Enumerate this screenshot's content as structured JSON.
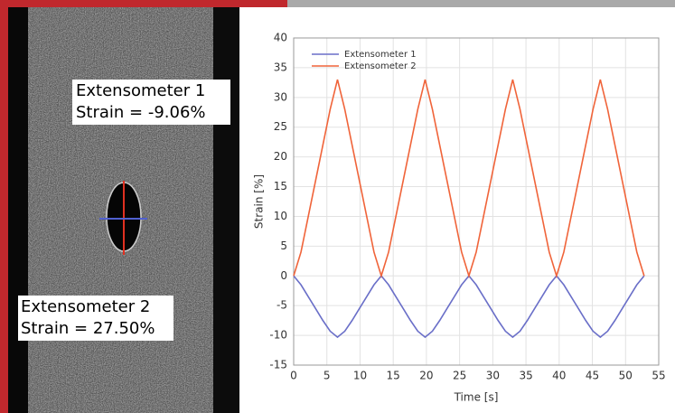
{
  "chart_data": {
    "type": "line",
    "x_label": "Time [s]",
    "y_label": "Strain [%]",
    "x": [
      0,
      1.1,
      2.2,
      3.3,
      4.4,
      5.5,
      6.6,
      7.7,
      8.8,
      9.9,
      11,
      12.1,
      13.2,
      14.3,
      15.4,
      16.5,
      17.6,
      18.7,
      19.8,
      20.9,
      22,
      23.1,
      24.2,
      25.3,
      26.4,
      27.5,
      28.6,
      29.7,
      30.8,
      31.9,
      33,
      34.1,
      35.2,
      36.3,
      37.4,
      38.5,
      39.6,
      40.7,
      41.8,
      42.9,
      44,
      45.1,
      46.2,
      47.3,
      48.4,
      49.5,
      50.6,
      51.7,
      52.8
    ],
    "series": [
      {
        "name": "Extensometer 1",
        "color": "#6a6fc8",
        "values": [
          0,
          -1.5,
          -3.5,
          -5.5,
          -7.5,
          -9.3,
          -10.3,
          -9.3,
          -7.5,
          -5.5,
          -3.5,
          -1.5,
          0,
          -1.5,
          -3.5,
          -5.5,
          -7.5,
          -9.3,
          -10.3,
          -9.3,
          -7.5,
          -5.5,
          -3.5,
          -1.5,
          0,
          -1.5,
          -3.5,
          -5.5,
          -7.5,
          -9.3,
          -10.3,
          -9.3,
          -7.5,
          -5.5,
          -3.5,
          -1.5,
          0,
          -1.5,
          -3.5,
          -5.5,
          -7.5,
          -9.3,
          -10.3,
          -9.3,
          -7.5,
          -5.5,
          -3.5,
          -1.5,
          0
        ]
      },
      {
        "name": "Extensometer 2",
        "color": "#f0643a",
        "values": [
          0,
          4,
          10,
          16,
          22,
          28,
          33,
          28,
          22,
          16,
          10,
          4,
          0,
          4,
          10,
          16,
          22,
          28,
          33,
          28,
          22,
          16,
          10,
          4,
          0,
          4,
          10,
          16,
          22,
          28,
          33,
          28,
          22,
          16,
          10,
          4,
          0,
          4,
          10,
          16,
          22,
          28,
          33,
          28,
          22,
          16,
          10,
          4,
          0
        ]
      }
    ],
    "xlim": [
      0,
      55
    ],
    "xticks": [
      0,
      5,
      10,
      15,
      20,
      25,
      30,
      35,
      40,
      45,
      50,
      55
    ],
    "ylim": [
      -15,
      40
    ],
    "yticks": [
      -15,
      -10,
      -5,
      0,
      5,
      10,
      15,
      20,
      25,
      30,
      35,
      40
    ],
    "grid": true,
    "legend": "top-left"
  },
  "image_labels": [
    {
      "name": "Extensometer 1",
      "text": "Strain = -9.06%"
    },
    {
      "name": "Extensometer 2",
      "text": "Strain = 27.50%"
    }
  ]
}
